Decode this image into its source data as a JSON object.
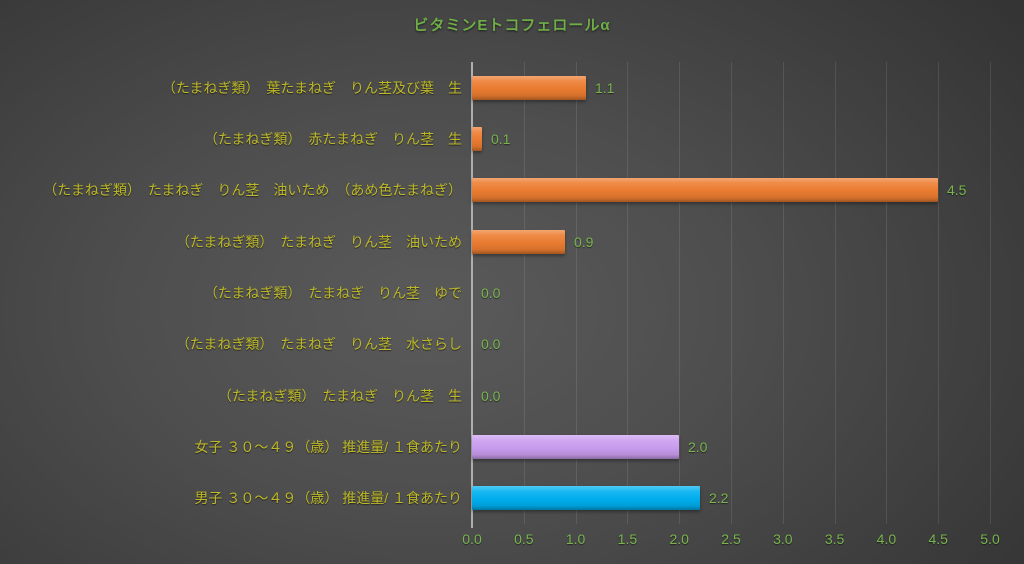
{
  "chart_data": {
    "type": "bar",
    "orientation": "horizontal",
    "title": "ビタミンEトコフェロールα",
    "categories": [
      "（たまねぎ類）　葉たまねぎ　りん茎及び葉　生",
      "（たまねぎ類）　赤たまねぎ　りん茎　生",
      "（たまねぎ類）　たまねぎ　りん茎　油いため　（あめ色たまねぎ）",
      "（たまねぎ類）　たまねぎ　りん茎　油いため",
      "（たまねぎ類）　たまねぎ　りん茎　ゆで",
      "（たまねぎ類）　たまねぎ　りん茎　水さらし",
      "（たまねぎ類）　たまねぎ　りん茎　生",
      "女子 ３０～４９（歳） 推進量/ １食あたり",
      "男子 ３０～４９（歳） 推進量/ １食あたり"
    ],
    "values": [
      1.1,
      0.1,
      4.5,
      0.9,
      0.0,
      0.0,
      0.0,
      2.0,
      2.2
    ],
    "value_labels": [
      "1.1",
      "0.1",
      "4.5",
      "0.9",
      "0.0",
      "0.0",
      "0.0",
      "2.0",
      "2.2"
    ],
    "bar_colors": [
      "#ed7d31",
      "#ed7d31",
      "#ed7d31",
      "#ed7d31",
      "#ed7d31",
      "#ed7d31",
      "#ed7d31",
      "#cb9ef0",
      "#00b0f0"
    ],
    "xlim": [
      0,
      5
    ],
    "x_ticks": [
      "0.0",
      "0.5",
      "1.0",
      "1.5",
      "2.0",
      "2.5",
      "3.0",
      "3.5",
      "4.0",
      "4.5",
      "5.0"
    ],
    "grid": "vertical",
    "legend": "none"
  },
  "style": {
    "title_color": "#6fae47",
    "value_label_color": "#78b54e",
    "tick_label_color": "#78b54e",
    "category_label_color": "#bdb827",
    "axis_line_color": "#aeaeae",
    "orange": "#ed7d31",
    "purple": "#cb9ef0",
    "blue": "#00b0f0"
  }
}
